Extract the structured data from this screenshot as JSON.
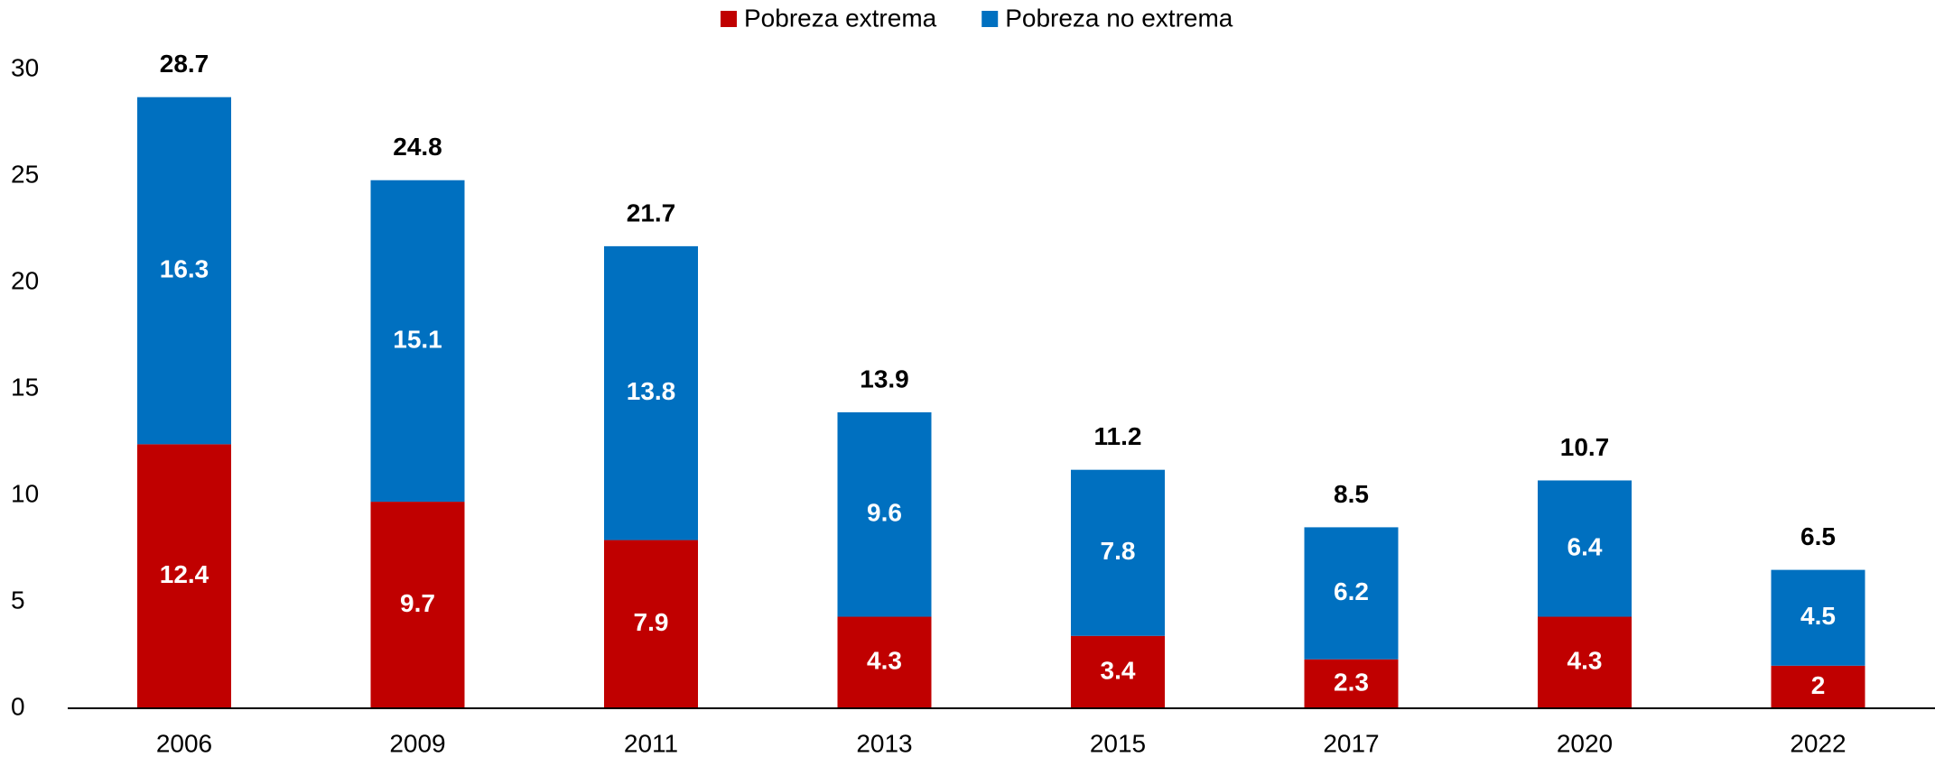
{
  "chart_data": {
    "type": "stacked_bar",
    "categories": [
      "2006",
      "2009",
      "2011",
      "2013",
      "2015",
      "2017",
      "2020",
      "2022"
    ],
    "series": [
      {
        "name": "Pobreza extrema",
        "color": "#c00000",
        "values": [
          12.4,
          9.7,
          7.9,
          4.3,
          3.4,
          2.3,
          4.3,
          2
        ]
      },
      {
        "name": "Pobreza no extrema",
        "color": "#0070c0",
        "values": [
          16.3,
          15.1,
          13.8,
          9.6,
          7.8,
          6.2,
          6.4,
          4.5
        ]
      }
    ],
    "totals": [
      28.7,
      24.8,
      21.7,
      13.9,
      11.2,
      8.5,
      10.7,
      6.5
    ],
    "ylim": [
      0,
      30
    ],
    "yticks": [
      0,
      5,
      10,
      15,
      20,
      25,
      30
    ],
    "grid": false,
    "legend": "top"
  }
}
